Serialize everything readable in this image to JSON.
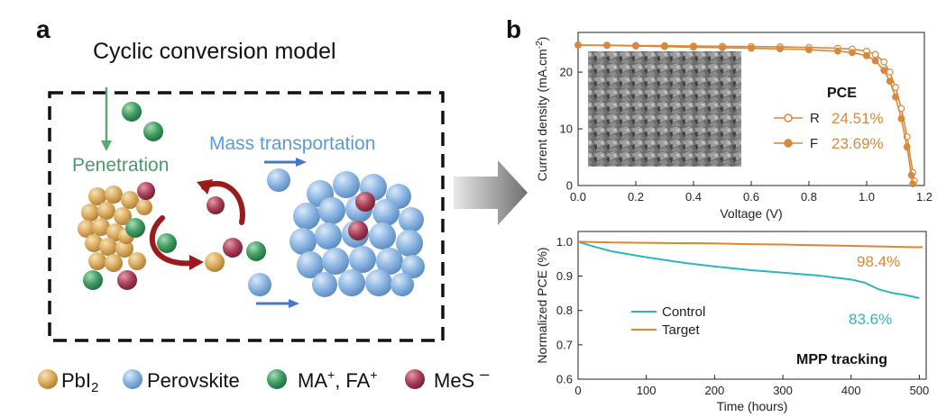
{
  "panel_a": {
    "label": "a",
    "title": "Cyclic conversion model",
    "annotations": {
      "penetration": "Penetration",
      "mass_transport": "Mass transportation"
    },
    "legend": [
      {
        "label": "PbI",
        "sub": "2",
        "sup": "",
        "color": "#d6a85a"
      },
      {
        "label": "Perovskite",
        "sub": "",
        "sup": "",
        "color": "#86b3e0"
      },
      {
        "label": "MA",
        "sup": "+",
        "tail": ", FA",
        "sup2": "+",
        "color": "#3f9b62"
      },
      {
        "label": "MeS",
        "sup": "–",
        "color": "#a84058"
      }
    ],
    "colors": {
      "pbi2": "#d6a85a",
      "perovskite": "#86b3e0",
      "cation": "#3f9b62",
      "mes": "#a84058",
      "arrow_green": "#5aa773",
      "arrow_blue": "#4477c9",
      "arrow_red": "#9b1a1a",
      "text_green": "#4b9a6a",
      "text_blue": "#5b9bd5"
    }
  },
  "panel_b_label": "b",
  "chart_data": [
    {
      "type": "line",
      "id": "jv",
      "xlabel": "Voltage (V)",
      "ylabel": "Current density (mA.cm",
      "ylabel_sup": "-2",
      "ylabel_close": ")",
      "xlim": [
        0,
        1.2
      ],
      "ylim": [
        0,
        27
      ],
      "xticks": [
        0.0,
        0.2,
        0.4,
        0.6,
        0.8,
        1.0,
        1.2
      ],
      "xtick_labels": [
        "0.0",
        "0.2",
        "0.4",
        "0.6",
        "0.8",
        "1.0",
        "1.2"
      ],
      "yticks": [
        0,
        10,
        20
      ],
      "ytick_labels": [
        "0",
        "10",
        "20"
      ],
      "legend_title": "PCE",
      "color": "#d8883a",
      "series": [
        {
          "name": "R",
          "pce": "24.51%",
          "marker": "open-circle",
          "points": [
            [
              0.0,
              24.8
            ],
            [
              0.1,
              24.75
            ],
            [
              0.2,
              24.7
            ],
            [
              0.3,
              24.65
            ],
            [
              0.4,
              24.6
            ],
            [
              0.5,
              24.55
            ],
            [
              0.6,
              24.5
            ],
            [
              0.7,
              24.45
            ],
            [
              0.8,
              24.35
            ],
            [
              0.9,
              24.2
            ],
            [
              0.95,
              24.05
            ],
            [
              1.0,
              23.7
            ],
            [
              1.03,
              23.1
            ],
            [
              1.06,
              21.8
            ],
            [
              1.08,
              20.0
            ],
            [
              1.1,
              17.3
            ],
            [
              1.12,
              13.6
            ],
            [
              1.14,
              8.6
            ],
            [
              1.16,
              2.3
            ],
            [
              1.165,
              0.8
            ]
          ]
        },
        {
          "name": "F",
          "pce": "23.69%",
          "marker": "filled-circle",
          "points": [
            [
              0.0,
              24.75
            ],
            [
              0.1,
              24.7
            ],
            [
              0.2,
              24.6
            ],
            [
              0.3,
              24.5
            ],
            [
              0.4,
              24.4
            ],
            [
              0.5,
              24.3
            ],
            [
              0.6,
              24.2
            ],
            [
              0.7,
              24.1
            ],
            [
              0.8,
              23.95
            ],
            [
              0.9,
              23.7
            ],
            [
              0.95,
              23.45
            ],
            [
              1.0,
              22.9
            ],
            [
              1.03,
              22.0
            ],
            [
              1.06,
              20.3
            ],
            [
              1.08,
              18.4
            ],
            [
              1.1,
              15.6
            ],
            [
              1.12,
              11.8
            ],
            [
              1.14,
              6.8
            ],
            [
              1.155,
              1.8
            ],
            [
              1.16,
              0.3
            ]
          ]
        }
      ]
    },
    {
      "type": "line",
      "id": "mpp",
      "title": "MPP tracking",
      "xlabel": "Time (hours)",
      "ylabel": "Normalized PCE (%)",
      "xlim": [
        0,
        510
      ],
      "ylim": [
        0.6,
        1.03
      ],
      "xticks": [
        0,
        100,
        200,
        300,
        400,
        500
      ],
      "xtick_labels": [
        "0",
        "100",
        "200",
        "300",
        "400",
        "500"
      ],
      "yticks": [
        0.6,
        0.7,
        0.8,
        0.9,
        1.0
      ],
      "ytick_labels": [
        "0.6",
        "0.7",
        "0.8",
        "0.9",
        "1.0"
      ],
      "series": [
        {
          "name": "Control",
          "color": "#2ab6bf",
          "end_label": "83.6%",
          "points": [
            [
              0,
              1.0
            ],
            [
              25,
              0.985
            ],
            [
              50,
              0.972
            ],
            [
              100,
              0.955
            ],
            [
              150,
              0.94
            ],
            [
              200,
              0.928
            ],
            [
              250,
              0.918
            ],
            [
              300,
              0.91
            ],
            [
              350,
              0.902
            ],
            [
              400,
              0.89
            ],
            [
              420,
              0.881
            ],
            [
              440,
              0.862
            ],
            [
              460,
              0.851
            ],
            [
              480,
              0.845
            ],
            [
              500,
              0.836
            ]
          ]
        },
        {
          "name": "Target",
          "color": "#e0852c",
          "end_label": "98.4%",
          "points": [
            [
              0,
              1.0
            ],
            [
              50,
              0.998
            ],
            [
              100,
              0.997
            ],
            [
              150,
              0.996
            ],
            [
              200,
              0.995
            ],
            [
              250,
              0.993
            ],
            [
              300,
              0.992
            ],
            [
              350,
              0.99
            ],
            [
              400,
              0.988
            ],
            [
              450,
              0.986
            ],
            [
              500,
              0.984
            ],
            [
              505,
              0.985
            ]
          ]
        }
      ]
    }
  ]
}
